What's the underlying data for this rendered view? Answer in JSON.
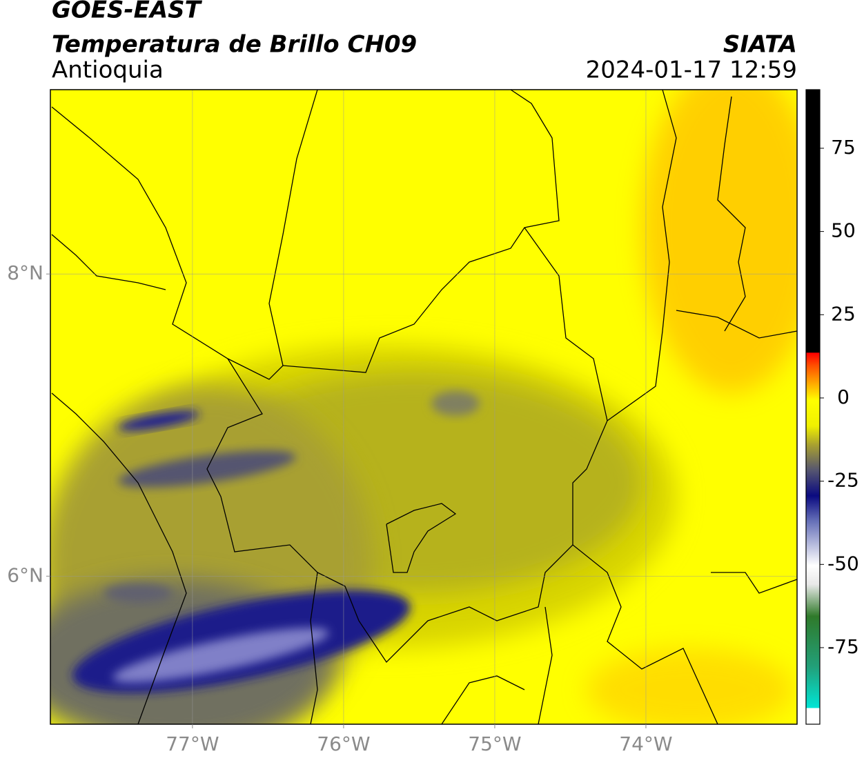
{
  "header": {
    "title": "GOES-EAST",
    "subtitle": "Temperatura de Brillo CH09",
    "region": "Antioquia",
    "source": "SIATA",
    "datetime": "2024-01-17 12:59"
  },
  "map": {
    "xlim": [
      -77.94,
      -73.0
    ],
    "ylim": [
      5.02,
      9.22
    ],
    "xticks": [
      {
        "value": -77,
        "label": "77°W"
      },
      {
        "value": -76,
        "label": "76°W"
      },
      {
        "value": -75,
        "label": "75°W"
      },
      {
        "value": -74,
        "label": "74°W"
      }
    ],
    "yticks": [
      {
        "value": 6,
        "label": "6°N"
      },
      {
        "value": 8,
        "label": "8°N"
      }
    ],
    "grid": true
  },
  "colorbar": {
    "lim": [
      -98,
      92.6
    ],
    "ticks": [
      75,
      50,
      25,
      0,
      -25,
      -50,
      -75
    ]
  }
}
